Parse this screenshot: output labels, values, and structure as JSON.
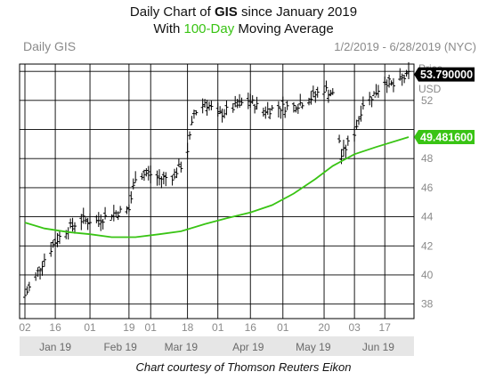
{
  "header": {
    "line1_pre": "Daily Chart of ",
    "line1_ticker": "GIS",
    "line1_post": " since January 2019",
    "line2_pre": "With ",
    "line2_hl": "100-Day",
    "line2_post": " Moving Average"
  },
  "chart_label": "Daily GIS",
  "date_range": "1/2/2019 - 6/28/2019 (NYC)",
  "price_axis_label": "Price",
  "currency_label": "USD",
  "credit": "Chart courtesy of Thomson Reuters Eikon",
  "colors": {
    "ma": "#39c414",
    "bars": "#000000",
    "grid": "#000000",
    "month_band": "#e6e6e6"
  },
  "chart_data": {
    "type": "line",
    "ylim": [
      37,
      54.5
    ],
    "y_ticks": [
      38,
      40,
      42,
      44,
      46,
      48,
      52
    ],
    "day_labels": [
      "02",
      "16",
      "01",
      "19",
      "01",
      "18",
      "01",
      "16",
      "01",
      "20",
      "03",
      "17"
    ],
    "day_label_dates": [
      "2019-01-02",
      "2019-01-16",
      "2019-02-01",
      "2019-02-19",
      "2019-03-01",
      "2019-03-18",
      "2019-04-01",
      "2019-04-16",
      "2019-05-01",
      "2019-05-20",
      "2019-06-03",
      "2019-06-17"
    ],
    "month_labels": [
      "Jan 19",
      "Feb 19",
      "Mar 19",
      "Apr 19",
      "May 19",
      "Jun 19"
    ],
    "month_label_dates": [
      "2019-01-16",
      "2019-02-15",
      "2019-03-15",
      "2019-04-15",
      "2019-05-15",
      "2019-06-14"
    ],
    "last_price": 53.79,
    "last_price_label": "53.790000",
    "ma_last": 49.4816,
    "ma_label": "49.481600",
    "series": [
      {
        "kind": "ohlc",
        "points": [
          {
            "x": "2019-01-02",
            "y": 38.6
          },
          {
            "x": "2019-01-07",
            "y": 39.9
          },
          {
            "x": "2019-01-11",
            "y": 41.1
          },
          {
            "x": "2019-01-16",
            "y": 42.3
          },
          {
            "x": "2019-01-22",
            "y": 43.2
          },
          {
            "x": "2019-01-28",
            "y": 43.8
          },
          {
            "x": "2019-02-04",
            "y": 43.7
          },
          {
            "x": "2019-02-11",
            "y": 44.2
          },
          {
            "x": "2019-02-19",
            "y": 44.5
          },
          {
            "x": "2019-02-22",
            "y": 46.8
          },
          {
            "x": "2019-02-28",
            "y": 47.0
          },
          {
            "x": "2019-03-05",
            "y": 46.6
          },
          {
            "x": "2019-03-11",
            "y": 46.8
          },
          {
            "x": "2019-03-15",
            "y": 47.5
          },
          {
            "x": "2019-03-18",
            "y": 48.6
          },
          {
            "x": "2019-03-21",
            "y": 51.1
          },
          {
            "x": "2019-03-26",
            "y": 51.9
          },
          {
            "x": "2019-04-01",
            "y": 51.0
          },
          {
            "x": "2019-04-08",
            "y": 51.5
          },
          {
            "x": "2019-04-15",
            "y": 52.0
          },
          {
            "x": "2019-04-22",
            "y": 51.3
          },
          {
            "x": "2019-04-29",
            "y": 51.5
          },
          {
            "x": "2019-05-06",
            "y": 51.6
          },
          {
            "x": "2019-05-13",
            "y": 52.1
          },
          {
            "x": "2019-05-20",
            "y": 52.8
          },
          {
            "x": "2019-05-24",
            "y": 52.4
          },
          {
            "x": "2019-05-28",
            "y": 48.2
          },
          {
            "x": "2019-06-03",
            "y": 49.8
          },
          {
            "x": "2019-06-07",
            "y": 51.8
          },
          {
            "x": "2019-06-12",
            "y": 52.4
          },
          {
            "x": "2019-06-17",
            "y": 53.4
          },
          {
            "x": "2019-06-21",
            "y": 53.0
          },
          {
            "x": "2019-06-28",
            "y": 53.79
          }
        ]
      },
      {
        "name": "100-Day",
        "kind": "line",
        "points": [
          {
            "x": "2019-01-02",
            "y": 43.6
          },
          {
            "x": "2019-01-11",
            "y": 43.2
          },
          {
            "x": "2019-01-22",
            "y": 42.95
          },
          {
            "x": "2019-02-01",
            "y": 42.8
          },
          {
            "x": "2019-02-11",
            "y": 42.6
          },
          {
            "x": "2019-02-22",
            "y": 42.6
          },
          {
            "x": "2019-03-05",
            "y": 42.8
          },
          {
            "x": "2019-03-15",
            "y": 43.0
          },
          {
            "x": "2019-03-26",
            "y": 43.5
          },
          {
            "x": "2019-04-05",
            "y": 43.9
          },
          {
            "x": "2019-04-16",
            "y": 44.3
          },
          {
            "x": "2019-04-26",
            "y": 44.8
          },
          {
            "x": "2019-05-06",
            "y": 45.6
          },
          {
            "x": "2019-05-16",
            "y": 46.6
          },
          {
            "x": "2019-05-24",
            "y": 47.5
          },
          {
            "x": "2019-06-03",
            "y": 48.3
          },
          {
            "x": "2019-06-13",
            "y": 48.8
          },
          {
            "x": "2019-06-28",
            "y": 49.48
          }
        ]
      }
    ]
  }
}
